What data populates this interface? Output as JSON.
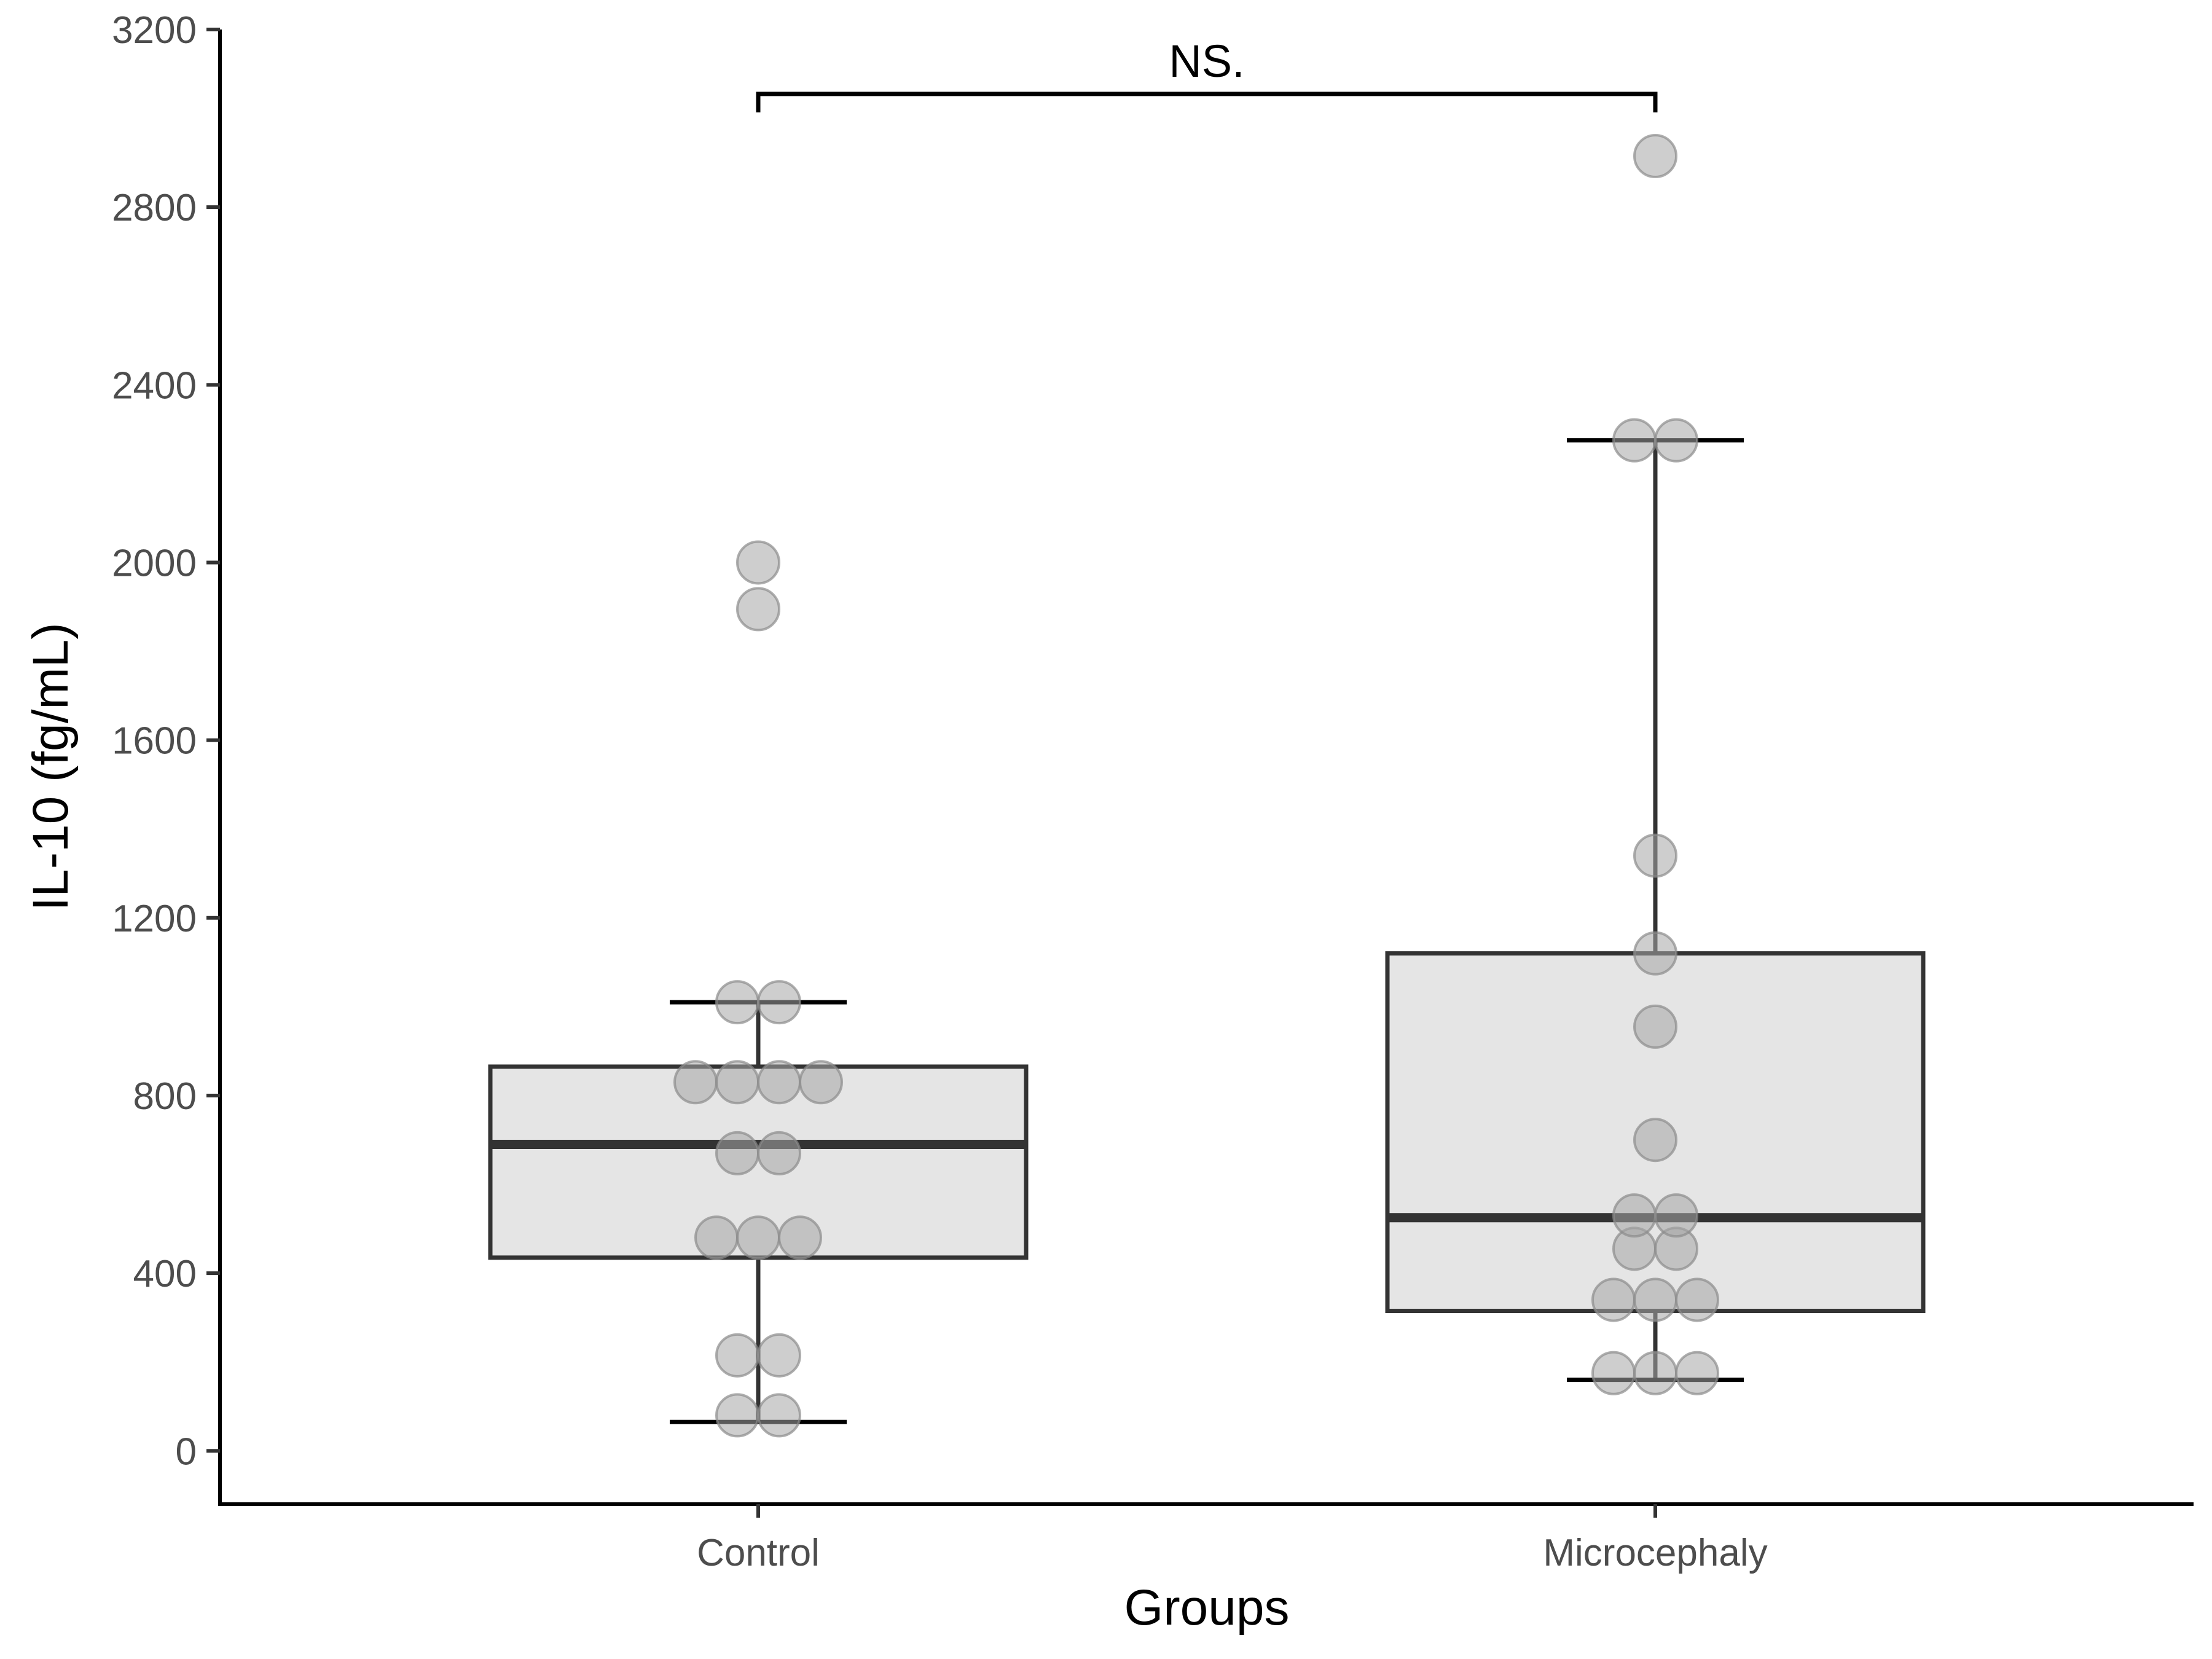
{
  "chart_data": {
    "type": "box",
    "xlabel": "Groups",
    "ylabel": "IL-10 (fg/mL)",
    "ylim": [
      -120,
      3200
    ],
    "yticks": [
      0,
      400,
      800,
      1200,
      1600,
      2000,
      2400,
      2800,
      3200
    ],
    "categories": [
      "Control",
      "Microcephaly"
    ],
    "boxes": [
      {
        "category": "Control",
        "whisker_low": 65,
        "q1": 435,
        "median": 690,
        "q3": 865,
        "whisker_high": 1010,
        "points": [
          2000,
          1895,
          1010,
          1010,
          830,
          830,
          830,
          830,
          670,
          670,
          480,
          480,
          480,
          215,
          215,
          80,
          80
        ]
      },
      {
        "category": "Microcephaly",
        "whisker_low": 160,
        "q1": 315,
        "median": 525,
        "q3": 1120,
        "whisker_high": 2275,
        "points": [
          2915,
          2275,
          2275,
          1340,
          1120,
          955,
          700,
          530,
          530,
          455,
          455,
          340,
          340,
          340,
          175,
          175,
          175
        ]
      }
    ],
    "annotations": [
      {
        "text": "NS.",
        "from": "Control",
        "to": "Microcephaly",
        "y": 3055
      }
    ],
    "colors": {
      "box_fill": "#e5e5e5",
      "box_line": "#333333",
      "point_fill": "#a6a6a6",
      "axis": "#000000"
    },
    "grid": false
  }
}
